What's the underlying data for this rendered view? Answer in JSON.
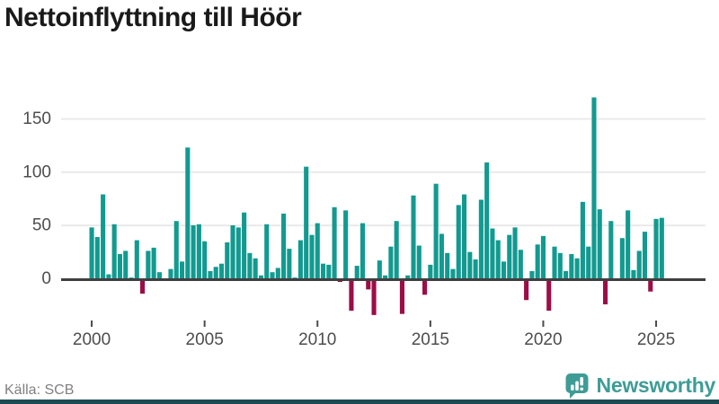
{
  "title": "Nettoinflyttning till Höör",
  "source": "Källa: SCB",
  "branding": {
    "logo_text": "Newsworthy"
  },
  "colors": {
    "positive": "#129a90",
    "negative": "#9c0d46",
    "grid": "#eaeaea",
    "axis": "#3f3f3f",
    "tick": "#4a4a4a",
    "axis_text": "#4d4d4d",
    "title_text": "#1a1a1a",
    "source_text": "#808080",
    "brand": "#3e9c96",
    "footer_strip": "#1d4b53"
  },
  "chart_data": {
    "type": "bar",
    "title": "Nettoinflyttning till Höör",
    "xlabel": "",
    "ylabel": "",
    "start_period": "2000 Q1",
    "end_period": "2025 Q2",
    "frequency": "quarterly",
    "grid": true,
    "y_ticks": [
      0,
      50,
      100,
      150
    ],
    "ylim": [
      -40,
      175
    ],
    "x_ticks": [
      {
        "label": "2000",
        "index": 0
      },
      {
        "label": "2005",
        "index": 20
      },
      {
        "label": "2010",
        "index": 40
      },
      {
        "label": "2015",
        "index": 60
      },
      {
        "label": "2020",
        "index": 80
      },
      {
        "label": "2025",
        "index": 100
      }
    ],
    "values": [
      49,
      40,
      80,
      5,
      52,
      24,
      27,
      2,
      37,
      -14,
      27,
      30,
      7,
      0,
      10,
      55,
      17,
      124,
      51,
      52,
      36,
      8,
      12,
      15,
      35,
      51,
      49,
      63,
      25,
      20,
      4,
      52,
      7,
      11,
      62,
      29,
      2,
      37,
      106,
      42,
      53,
      15,
      14,
      68,
      -3,
      65,
      -30,
      13,
      53,
      -10,
      -34,
      18,
      4,
      31,
      55,
      -33,
      4,
      79,
      32,
      -15,
      14,
      90,
      43,
      25,
      10,
      70,
      80,
      26,
      19,
      75,
      110,
      48,
      37,
      17,
      42,
      49,
      28,
      -20,
      8,
      33,
      41,
      -30,
      31,
      25,
      8,
      24,
      20,
      73,
      31,
      171,
      66,
      -24,
      55,
      1,
      39,
      65,
      9,
      27,
      45,
      -12,
      57,
      58
    ]
  }
}
